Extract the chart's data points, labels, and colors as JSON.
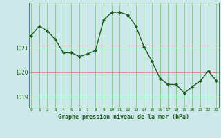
{
  "x": [
    0,
    1,
    2,
    3,
    4,
    5,
    6,
    7,
    8,
    9,
    10,
    11,
    12,
    13,
    14,
    15,
    16,
    17,
    18,
    19,
    20,
    21,
    22,
    23
  ],
  "y": [
    1021.5,
    1021.9,
    1021.7,
    1021.35,
    1020.8,
    1020.8,
    1020.65,
    1020.75,
    1020.9,
    1022.15,
    1022.45,
    1022.45,
    1022.35,
    1021.9,
    1021.05,
    1020.45,
    1019.75,
    1019.5,
    1019.5,
    1019.15,
    1019.4,
    1019.65,
    1020.05,
    1019.65
  ],
  "line_color": "#1a5c1a",
  "marker_color": "#1a5c1a",
  "bg_color": "#cce8e8",
  "grid_color_h": "#e08080",
  "grid_color_v": "#80c880",
  "axis_color": "#1a5c1a",
  "title": "Graphe pression niveau de la mer (hPa)",
  "title_color": "#1a5c1a",
  "yticks": [
    1019,
    1020,
    1021
  ],
  "ylim": [
    1018.55,
    1022.85
  ],
  "xlim": [
    -0.3,
    23.3
  ],
  "xtick_labels": [
    "0",
    "1",
    "2",
    "3",
    "4",
    "5",
    "6",
    "7",
    "8",
    "9",
    "10",
    "11",
    "12",
    "13",
    "14",
    "15",
    "16",
    "17",
    "18",
    "19",
    "20",
    "21",
    "22",
    "23"
  ]
}
